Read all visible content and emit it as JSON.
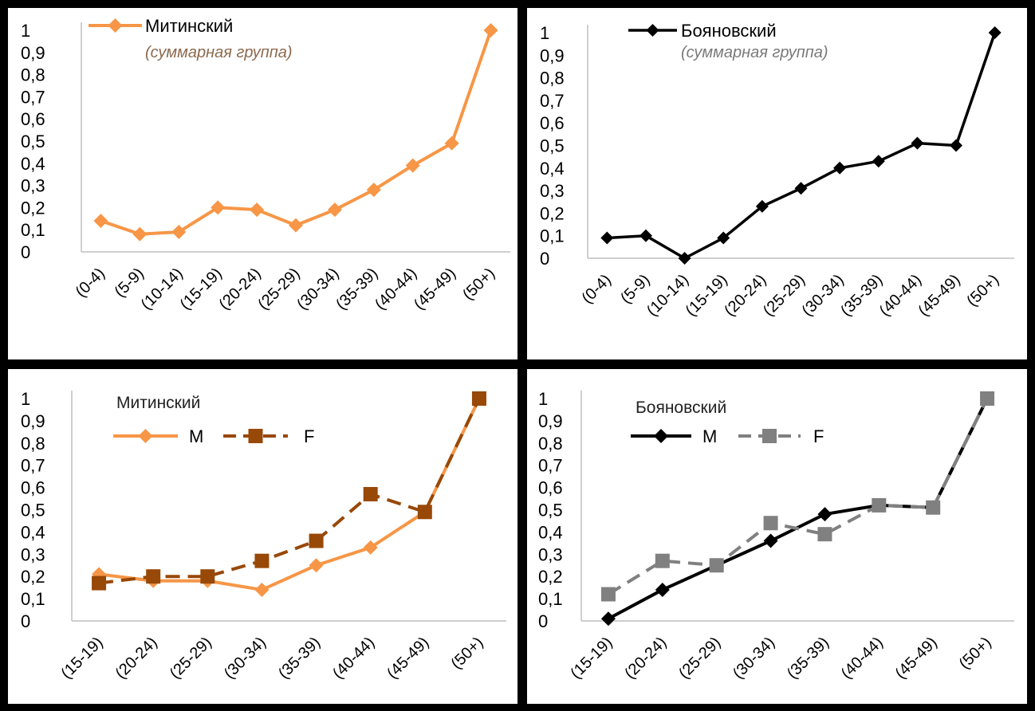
{
  "chart_data": [
    {
      "type": "line",
      "legend_position": "top-left",
      "subtitle": "(суммарная группа)",
      "ylim": [
        0,
        1
      ],
      "yticks": [
        "0",
        "0,1",
        "0,2",
        "0,3",
        "0,4",
        "0,5",
        "0,6",
        "0,7",
        "0,8",
        "0,9",
        "1"
      ],
      "categories": [
        "(0-4)",
        "(5-9)",
        "(10-14)",
        "(15-19)",
        "(20-24)",
        "(25-29)",
        "(30-34)",
        "(35-39)",
        "(40-44)",
        "(45-49)",
        "(50+)"
      ],
      "series": [
        {
          "name": "Митинский",
          "color": "#F79646",
          "marker": "diamond",
          "dash": "solid",
          "values": [
            0.14,
            0.08,
            0.09,
            0.2,
            0.19,
            0.12,
            0.19,
            0.28,
            0.39,
            0.49,
            1.0
          ]
        }
      ]
    },
    {
      "type": "line",
      "legend_position": "top-left",
      "subtitle": "(суммарная группа)",
      "ylim": [
        0,
        1
      ],
      "yticks": [
        "0",
        "0,1",
        "0,2",
        "0,3",
        "0,4",
        "0,5",
        "0,6",
        "0,7",
        "0,8",
        "0,9",
        "1"
      ],
      "categories": [
        "(0-4)",
        "(5-9)",
        "(10-14)",
        "(15-19)",
        "(20-24)",
        "(25-29)",
        "(30-34)",
        "(35-39)",
        "(40-44)",
        "(45-49)",
        "(50+)"
      ],
      "series": [
        {
          "name": "Бояновский",
          "color": "#000000",
          "marker": "diamond",
          "dash": "solid",
          "values": [
            0.09,
            0.1,
            0.0,
            0.09,
            0.23,
            0.31,
            0.4,
            0.43,
            0.51,
            0.5,
            1.0
          ]
        }
      ]
    },
    {
      "type": "line",
      "title": "Митинский",
      "legend_position": "top-left",
      "ylim": [
        0,
        1
      ],
      "yticks": [
        "0",
        "0,1",
        "0,2",
        "0,3",
        "0,4",
        "0,5",
        "0,6",
        "0,7",
        "0,8",
        "0,9",
        "1"
      ],
      "categories": [
        "(15-19)",
        "(20-24)",
        "(25-29)",
        "(30-34)",
        "(35-39)",
        "(40-44)",
        "(45-49)",
        "(50+)"
      ],
      "series": [
        {
          "name": "M",
          "color": "#F79646",
          "marker": "diamond",
          "dash": "solid",
          "values": [
            0.21,
            0.18,
            0.18,
            0.14,
            0.25,
            0.33,
            0.49,
            1.0
          ]
        },
        {
          "name": "F",
          "color": "#984807",
          "marker": "square",
          "dash": "dashed",
          "values": [
            0.17,
            0.2,
            0.2,
            0.27,
            0.36,
            0.57,
            0.49,
            1.0
          ]
        }
      ]
    },
    {
      "type": "line",
      "title": "Бояновский",
      "legend_position": "top-left",
      "ylim": [
        0,
        1
      ],
      "yticks": [
        "0",
        "0,1",
        "0,2",
        "0,3",
        "0,4",
        "0,5",
        "0,6",
        "0,7",
        "0,8",
        "0,9",
        "1"
      ],
      "categories": [
        "(15-19)",
        "(20-24)",
        "(25-29)",
        "(30-34)",
        "(35-39)",
        "(40-44)",
        "(45-49)",
        "(50+)"
      ],
      "series": [
        {
          "name": "M",
          "color": "#000000",
          "marker": "diamond",
          "dash": "solid",
          "values": [
            0.01,
            0.14,
            0.25,
            0.36,
            0.48,
            0.52,
            0.51,
            1.0
          ]
        },
        {
          "name": "F",
          "color": "#808080",
          "marker": "square",
          "dash": "dashed",
          "values": [
            0.12,
            0.27,
            0.25,
            0.44,
            0.39,
            0.52,
            0.51,
            1.0
          ]
        }
      ]
    }
  ]
}
